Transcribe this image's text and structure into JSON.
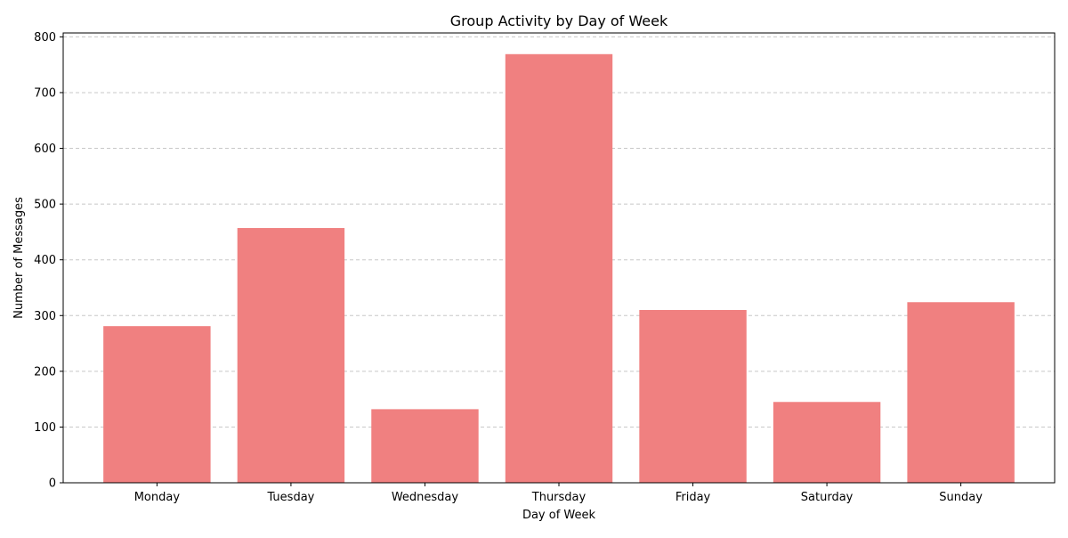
{
  "chart_data": {
    "type": "bar",
    "title": "Group Activity by Day of Week",
    "xlabel": "Day of Week",
    "ylabel": "Number of Messages",
    "categories": [
      "Monday",
      "Tuesday",
      "Wednesday",
      "Thursday",
      "Friday",
      "Saturday",
      "Sunday"
    ],
    "values": [
      281,
      457,
      132,
      769,
      310,
      145,
      324
    ],
    "ylim": [
      0,
      807
    ],
    "yticks": [
      0,
      100,
      200,
      300,
      400,
      500,
      600,
      700,
      800
    ],
    "grid": "y-dashed",
    "colors": {
      "bar": "#f08080",
      "grid": "#c8c8c8",
      "axis": "#000000"
    }
  }
}
